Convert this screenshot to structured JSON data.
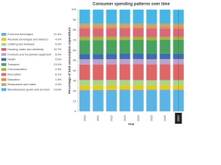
{
  "chart_data": {
    "type": "stacked-bar",
    "title": "Consumer spending patterns over time",
    "x_label": "Year",
    "y_label": "Percentage of total consumption expenditure",
    "categories": [
      "2010",
      "2011",
      "2012",
      "2013",
      "2014",
      "2015",
      "2016",
      "2017"
    ],
    "ylim": [
      0,
      100
    ],
    "yticks": [
      0,
      10,
      20,
      30,
      40,
      50,
      60,
      70,
      80,
      90,
      100
    ],
    "legend": "left",
    "series": [
      {
        "name": "Food and beverages",
        "color": "#5ab4e5",
        "values": [
          20.9,
          21.0,
          21.1,
          21.3,
          21.2,
          21.3,
          21.4,
          21.4
        ],
        "value_labels": [
          null,
          null,
          null,
          null,
          null,
          null,
          null,
          "21.4%"
        ]
      },
      {
        "name": "Alcoholic beverages and tobacco",
        "color": "#f2c511",
        "values": [
          4.3,
          4.2,
          4.2,
          4.1,
          4.1,
          4.0,
          4.0,
          4.0
        ],
        "value_labels": [
          null,
          null,
          null,
          null,
          null,
          null,
          null,
          "4.0%"
        ]
      },
      {
        "name": "Clothing and footwear",
        "color": "#a4d886",
        "values": [
          5.6,
          5.5,
          5.5,
          5.4,
          5.4,
          5.3,
          5.3,
          5.3
        ],
        "value_labels": [
          null,
          null,
          null,
          null,
          null,
          null,
          null,
          "5.3%"
        ]
      },
      {
        "name": "Housing, water and electricity",
        "color": "#e06666",
        "values": [
          15.2,
          15.3,
          15.4,
          15.5,
          15.6,
          15.6,
          15.7,
          15.7
        ],
        "value_labels": [
          null,
          null,
          null,
          null,
          null,
          null,
          null,
          "15.7%"
        ]
      },
      {
        "name": "Furniture and household equipment",
        "color": "#b9a4cf",
        "values": [
          5.2,
          5.2,
          5.1,
          5.1,
          5.1,
          5.0,
          5.0,
          5.0
        ],
        "value_labels": [
          null,
          null,
          null,
          null,
          null,
          null,
          null,
          "5.0%"
        ]
      },
      {
        "name": "Health",
        "color": "#3d6fb0",
        "values": [
          5.3,
          5.3,
          5.4,
          5.4,
          5.4,
          5.5,
          5.5,
          5.5
        ],
        "value_labels": [
          null,
          null,
          null,
          null,
          null,
          null,
          null,
          "5.5%"
        ]
      },
      {
        "name": "Transport",
        "color": "#4aa35c",
        "values": [
          13.6,
          13.6,
          13.5,
          13.4,
          13.5,
          13.4,
          13.4,
          13.4
        ],
        "value_labels": [
          null,
          null,
          null,
          null,
          null,
          null,
          null,
          "13.4%"
        ]
      },
      {
        "name": "Communication",
        "color": "#a7b33c",
        "values": [
          3.1,
          3.1,
          3.0,
          3.0,
          3.0,
          2.9,
          2.9,
          2.9
        ],
        "value_labels": [
          null,
          null,
          null,
          null,
          null,
          null,
          null,
          "2.9%"
        ]
      },
      {
        "name": "Recreation",
        "color": "#d9687b",
        "values": [
          8.3,
          8.3,
          8.2,
          8.2,
          8.1,
          8.1,
          8.1,
          8.1
        ],
        "value_labels": [
          null,
          null,
          null,
          null,
          null,
          null,
          null,
          "8.1%"
        ]
      },
      {
        "name": "Education",
        "color": "#e8893a",
        "values": [
          1.5,
          1.5,
          1.5,
          1.5,
          1.5,
          1.5,
          1.5,
          1.5
        ],
        "value_labels": [
          null,
          null,
          null,
          null,
          null,
          null,
          null,
          "1.5%"
        ]
      },
      {
        "name": "Restaurants and hotels",
        "color": "#c9a46e",
        "values": [
          3.2,
          3.2,
          3.2,
          3.3,
          3.3,
          3.3,
          3.3,
          3.3
        ],
        "value_labels": [
          null,
          null,
          null,
          null,
          null,
          null,
          null,
          "3.3%"
        ]
      },
      {
        "name": "Miscellaneous goods and services",
        "color": "#45b6e6",
        "values": [
          13.8,
          13.8,
          13.9,
          13.8,
          13.8,
          14.1,
          13.9,
          13.8
        ],
        "value_labels": [
          null,
          null,
          null,
          null,
          null,
          null,
          null,
          "13.8%"
        ]
      }
    ]
  }
}
